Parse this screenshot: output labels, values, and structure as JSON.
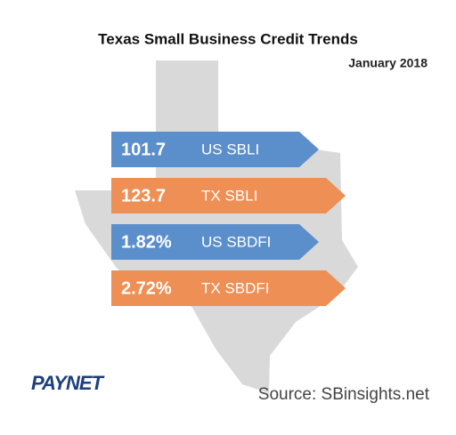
{
  "title": "Texas Small Business Credit Trends",
  "subtitle": "January 2018",
  "indicators": [
    {
      "value": "101.7",
      "label": "US SBLI",
      "color": "#5b8fcb"
    },
    {
      "value": "123.7",
      "label": "TX SBLI",
      "color": "#ee8f55"
    },
    {
      "value": "1.82%",
      "label": "US SBDFI",
      "color": "#5b8fcb"
    },
    {
      "value": "2.72%",
      "label": "TX SBDFI",
      "color": "#ee8f55"
    }
  ],
  "logo": "PAYNET",
  "source": "Source: SBinsights.net"
}
